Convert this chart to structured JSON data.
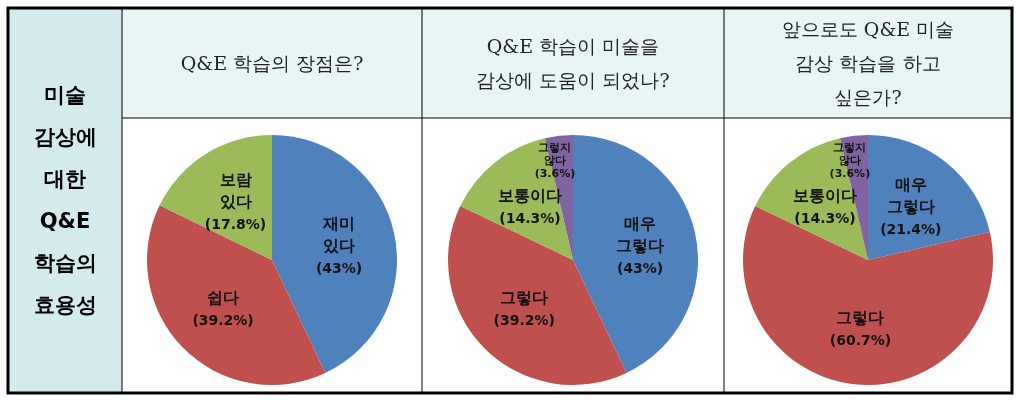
{
  "chart_data": [
    {
      "type": "other",
      "title": "미술 감상에 대한 Q&E 학습의 효용성"
    },
    {
      "type": "pie",
      "title": "Q&E 학습의 장점은?",
      "categories": [
        "재미 있다",
        "쉽다",
        "보람 있다"
      ],
      "values": [
        43,
        39.2,
        17.8
      ],
      "colors": [
        "#4f81bd",
        "#c0504d",
        "#9bbb59"
      ],
      "value_labels": [
        "(43%)",
        "(39.2%)",
        "(17.8%)"
      ]
    },
    {
      "type": "pie",
      "title": "Q&E 학습이 미술을\n감상에 도움이 되었나?",
      "categories": [
        "매우 그렇다",
        "그렇다",
        "보통이다",
        "그렇지 않다"
      ],
      "values": [
        43,
        39.2,
        14.3,
        3.6
      ],
      "colors": [
        "#4f81bd",
        "#c0504d",
        "#9bbb59",
        "#8064a2"
      ],
      "value_labels": [
        "(43%)",
        "(39.2%)",
        "(14.3%)",
        "(3.6%)"
      ]
    },
    {
      "type": "pie",
      "title": "앞으로도 Q&E 미술\n감상 학습을 하고\n싶은가?",
      "categories": [
        "매우 그렇다",
        "그렇다",
        "보통이다",
        "그렇지 않다"
      ],
      "values": [
        21.4,
        60.7,
        14.3,
        3.6
      ],
      "colors": [
        "#4f81bd",
        "#c0504d",
        "#9bbb59",
        "#8064a2"
      ],
      "value_labels": [
        "(21.4%)",
        "(60.7%)",
        "(14.3%)",
        "(3.6%)"
      ]
    }
  ]
}
